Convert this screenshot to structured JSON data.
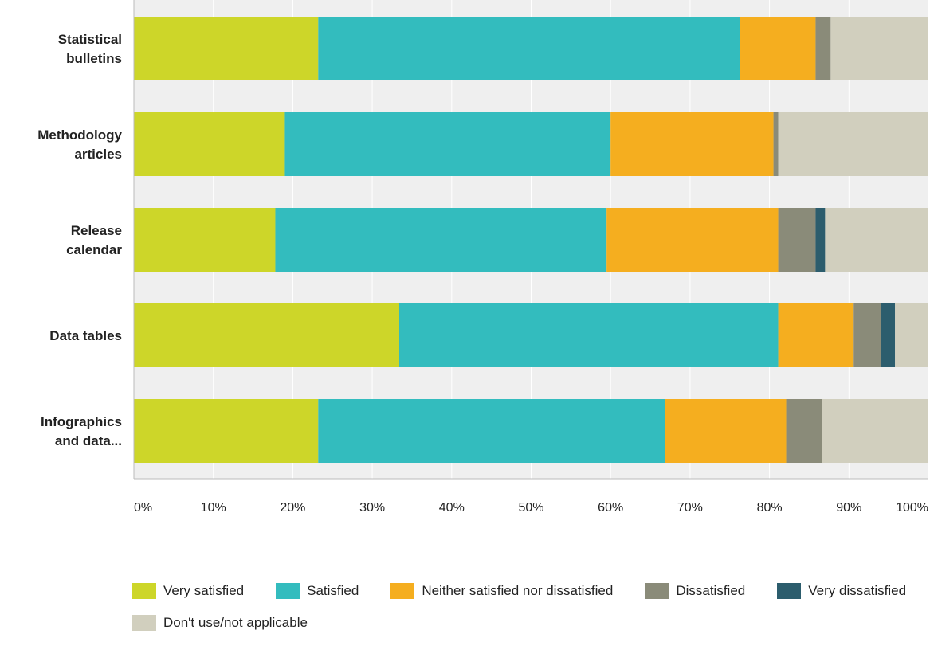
{
  "chart_data": {
    "type": "bar",
    "orientation": "horizontal",
    "stacked": true,
    "categories": [
      [
        "Statistical",
        "bulletins"
      ],
      [
        "Methodology",
        "articles"
      ],
      [
        "Release",
        "calendar"
      ],
      [
        "Data tables"
      ],
      [
        "Infographics",
        "and data..."
      ]
    ],
    "series": [
      {
        "name": "Very satisfied",
        "color": "#cdd629",
        "values": [
          23.2,
          19.0,
          17.8,
          33.4,
          23.2
        ]
      },
      {
        "name": "Satisfied",
        "color": "#33bcbe",
        "values": [
          53.1,
          41.0,
          41.7,
          47.7,
          43.7
        ]
      },
      {
        "name": "Neither satisfied nor dissatisfied",
        "color": "#f5ae1f",
        "values": [
          9.5,
          20.5,
          21.6,
          9.5,
          15.2
        ]
      },
      {
        "name": "Dissatisfied",
        "color": "#8a8b79",
        "values": [
          1.9,
          0.6,
          4.7,
          3.4,
          4.5
        ]
      },
      {
        "name": "Very dissatisfied",
        "color": "#2c5d6d",
        "values": [
          0.0,
          0.0,
          1.2,
          1.8,
          0.0
        ]
      },
      {
        "name": "Don't use/not applicable",
        "color": "#d1cfbe",
        "values": [
          12.3,
          18.9,
          13.0,
          4.2,
          13.4
        ]
      }
    ],
    "x_ticks": [
      "0%",
      "10%",
      "20%",
      "30%",
      "40%",
      "50%",
      "60%",
      "70%",
      "80%",
      "90%",
      "100%"
    ],
    "xlim": [
      0,
      100
    ],
    "grid": true,
    "legend_position": "bottom",
    "title": "",
    "xlabel": "",
    "ylabel": ""
  },
  "colors": {
    "plot_background": "#efefef",
    "gridline": "#ffffff",
    "axis": "#bbbbbb",
    "text": "#222222"
  }
}
